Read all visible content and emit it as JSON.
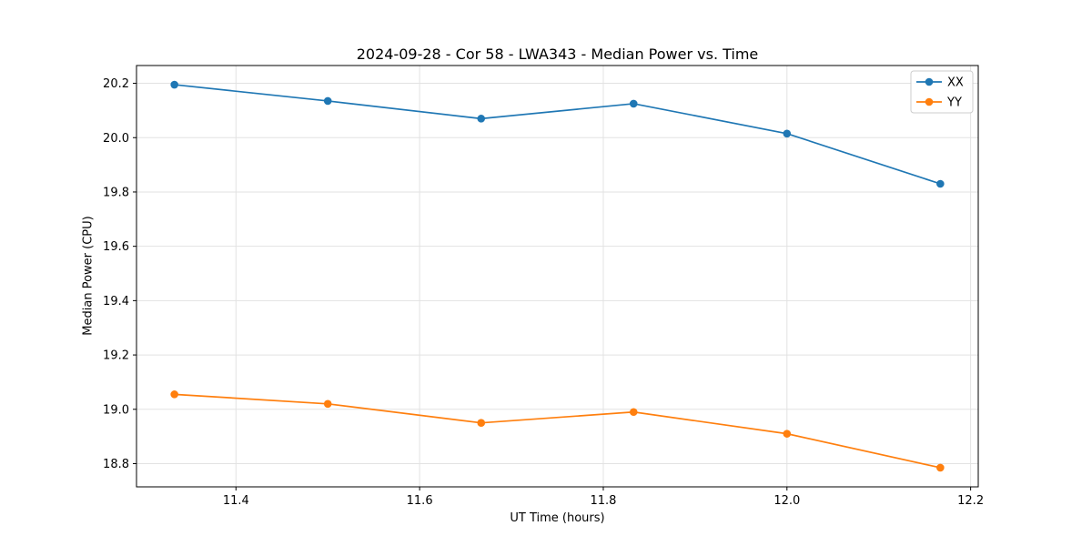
{
  "chart_data": {
    "type": "line",
    "title": "2024-09-28 - Cor 58 - LWA343 - Median Power vs. Time",
    "xlabel": "UT Time (hours)",
    "ylabel": "Median Power (CPU)",
    "x": [
      11.333,
      11.5,
      11.667,
      11.833,
      12.0,
      12.167
    ],
    "series": [
      {
        "name": "XX",
        "color": "#1f77b4",
        "values": [
          20.195,
          20.135,
          20.07,
          20.125,
          20.015,
          19.83
        ]
      },
      {
        "name": "YY",
        "color": "#ff7f0e",
        "values": [
          19.055,
          19.02,
          18.95,
          18.99,
          18.91,
          18.785
        ]
      }
    ],
    "xlim": [
      11.2917,
      12.2083
    ],
    "ylim": [
      18.7145,
      20.2655
    ],
    "xticks": [
      11.4,
      11.6,
      11.8,
      12.0,
      12.2
    ],
    "xtick_labels": [
      "11.4",
      "11.6",
      "11.8",
      "12.0",
      "12.2"
    ],
    "yticks": [
      18.8,
      19.0,
      19.2,
      19.4,
      19.6,
      19.8,
      20.0,
      20.2
    ],
    "ytick_labels": [
      "18.8",
      "19.0",
      "19.2",
      "19.4",
      "19.6",
      "19.8",
      "20.0",
      "20.2"
    ],
    "grid": true,
    "legend_position": "upper-right",
    "marker": "circle",
    "colors": {
      "grid": "#e2e2e2",
      "spine": "#000000",
      "tick_text": "#000000",
      "legend_border": "#cccccc",
      "legend_bg": "#ffffff"
    }
  }
}
